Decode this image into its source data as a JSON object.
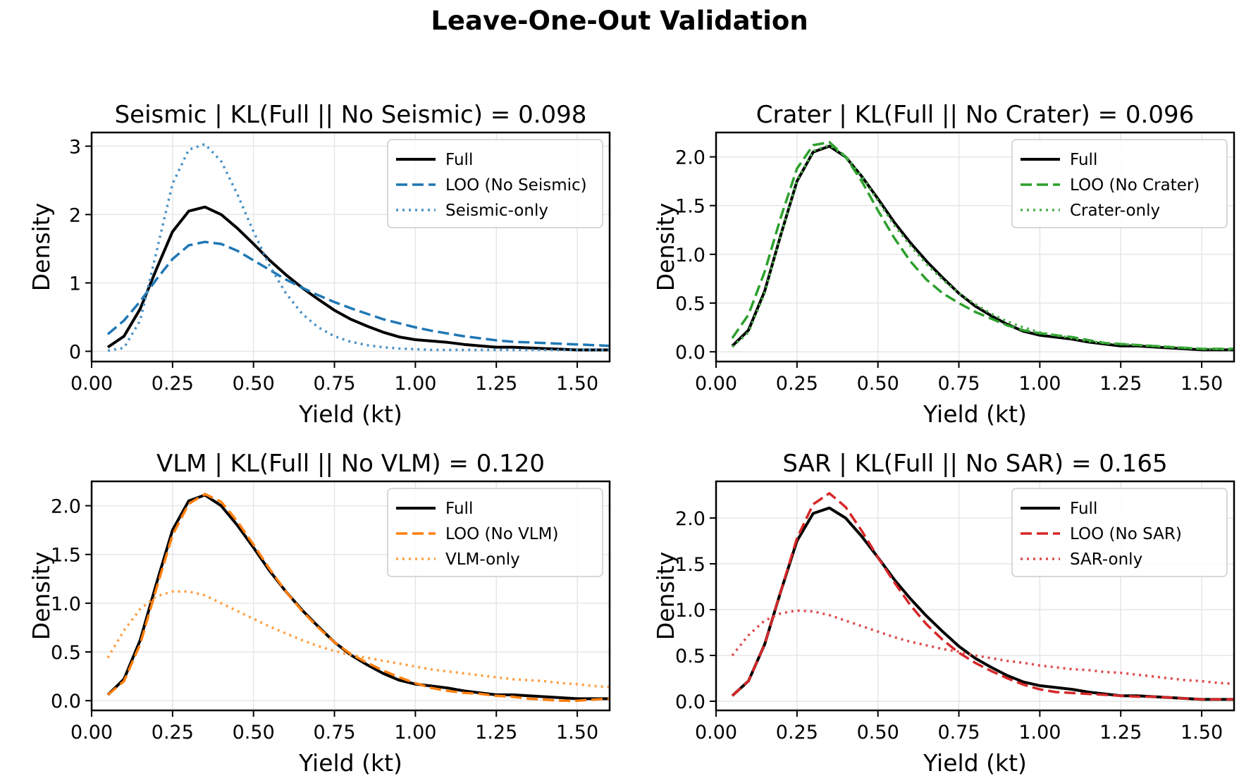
{
  "figure": {
    "title": "Leave-One-Out Validation"
  },
  "chart_data": [
    {
      "type": "line",
      "title": "Seismic | KL(Full || No Seismic) = 0.098",
      "xlabel": "Yield (kt)",
      "ylabel": "Density",
      "xlim": [
        0,
        1.6
      ],
      "ylim": [
        -0.15,
        3.2
      ],
      "xticks": [
        "0.00",
        "0.25",
        "0.50",
        "0.75",
        "1.00",
        "1.25",
        "1.50"
      ],
      "yticks": [
        "0",
        "1",
        "2",
        "3"
      ],
      "legend_position": "upper right",
      "grid": true,
      "series": [
        {
          "name": "Full",
          "color": "#000000",
          "style": "solid",
          "x": [
            0.05,
            0.1,
            0.15,
            0.2,
            0.25,
            0.3,
            0.35,
            0.4,
            0.45,
            0.5,
            0.55,
            0.6,
            0.65,
            0.7,
            0.75,
            0.8,
            0.85,
            0.9,
            0.95,
            1.0,
            1.05,
            1.1,
            1.15,
            1.2,
            1.25,
            1.3,
            1.35,
            1.4,
            1.45,
            1.5,
            1.55,
            1.6
          ],
          "y": [
            0.06,
            0.22,
            0.62,
            1.2,
            1.75,
            2.05,
            2.11,
            2.0,
            1.8,
            1.57,
            1.33,
            1.12,
            0.93,
            0.76,
            0.6,
            0.47,
            0.37,
            0.28,
            0.21,
            0.17,
            0.15,
            0.13,
            0.1,
            0.08,
            0.06,
            0.06,
            0.05,
            0.04,
            0.03,
            0.02,
            0.02,
            0.02
          ]
        },
        {
          "name": "LOO (No Seismic)",
          "color": "#1f77b4",
          "style": "dashed",
          "x": [
            0.05,
            0.1,
            0.15,
            0.2,
            0.25,
            0.3,
            0.35,
            0.4,
            0.45,
            0.5,
            0.55,
            0.6,
            0.65,
            0.7,
            0.75,
            0.8,
            0.85,
            0.9,
            0.95,
            1.0,
            1.05,
            1.1,
            1.15,
            1.2,
            1.25,
            1.3,
            1.35,
            1.4,
            1.45,
            1.5,
            1.55,
            1.6
          ],
          "y": [
            0.25,
            0.45,
            0.73,
            1.05,
            1.35,
            1.55,
            1.6,
            1.57,
            1.47,
            1.33,
            1.19,
            1.05,
            0.93,
            0.82,
            0.72,
            0.63,
            0.55,
            0.47,
            0.41,
            0.35,
            0.3,
            0.26,
            0.22,
            0.19,
            0.16,
            0.14,
            0.13,
            0.12,
            0.11,
            0.1,
            0.09,
            0.08
          ]
        },
        {
          "name": "Seismic-only",
          "color": "#4a92c5",
          "style": "dotted",
          "x": [
            0.05,
            0.1,
            0.15,
            0.2,
            0.25,
            0.3,
            0.35,
            0.4,
            0.45,
            0.5,
            0.55,
            0.6,
            0.65,
            0.7,
            0.75,
            0.8,
            0.85,
            0.9,
            0.95,
            1.0,
            1.05,
            1.1,
            1.15,
            1.2,
            1.25,
            1.3,
            1.35,
            1.4,
            1.45,
            1.5,
            1.55,
            1.6
          ],
          "y": [
            0.01,
            0.05,
            0.45,
            1.45,
            2.45,
            2.95,
            3.03,
            2.78,
            2.3,
            1.75,
            1.25,
            0.85,
            0.55,
            0.35,
            0.22,
            0.14,
            0.09,
            0.06,
            0.04,
            0.03,
            0.02,
            0.02,
            0.02,
            0.02,
            0.02,
            0.02,
            0.02,
            0.02,
            0.02,
            0.02,
            0.02,
            0.02
          ]
        }
      ]
    },
    {
      "type": "line",
      "title": "Crater | KL(Full || No Crater) = 0.096",
      "xlabel": "Yield (kt)",
      "ylabel": "Density",
      "xlim": [
        0,
        1.6
      ],
      "ylim": [
        -0.1,
        2.25
      ],
      "xticks": [
        "0.00",
        "0.25",
        "0.50",
        "0.75",
        "1.00",
        "1.25",
        "1.50"
      ],
      "yticks": [
        "0.0",
        "0.5",
        "1.0",
        "1.5",
        "2.0"
      ],
      "legend_position": "upper right",
      "grid": true,
      "series": [
        {
          "name": "Full",
          "color": "#000000",
          "style": "solid",
          "x": [
            0.05,
            0.1,
            0.15,
            0.2,
            0.25,
            0.3,
            0.35,
            0.4,
            0.45,
            0.5,
            0.55,
            0.6,
            0.65,
            0.7,
            0.75,
            0.8,
            0.85,
            0.9,
            0.95,
            1.0,
            1.05,
            1.1,
            1.15,
            1.2,
            1.25,
            1.3,
            1.35,
            1.4,
            1.45,
            1.5,
            1.55,
            1.6
          ],
          "y": [
            0.06,
            0.22,
            0.62,
            1.2,
            1.75,
            2.05,
            2.11,
            2.0,
            1.8,
            1.57,
            1.33,
            1.12,
            0.93,
            0.76,
            0.6,
            0.47,
            0.37,
            0.28,
            0.21,
            0.17,
            0.15,
            0.13,
            0.1,
            0.08,
            0.06,
            0.06,
            0.05,
            0.04,
            0.03,
            0.02,
            0.02,
            0.02
          ]
        },
        {
          "name": "LOO (No Crater)",
          "color": "#2ca02c",
          "style": "dashed",
          "x": [
            0.05,
            0.1,
            0.15,
            0.2,
            0.25,
            0.3,
            0.35,
            0.4,
            0.45,
            0.5,
            0.55,
            0.6,
            0.65,
            0.7,
            0.75,
            0.8,
            0.85,
            0.9,
            0.95,
            1.0,
            1.05,
            1.1,
            1.15,
            1.2,
            1.25,
            1.3,
            1.35,
            1.4,
            1.45,
            1.5,
            1.55,
            1.6
          ],
          "y": [
            0.14,
            0.38,
            0.82,
            1.38,
            1.88,
            2.12,
            2.15,
            2.0,
            1.75,
            1.45,
            1.17,
            0.93,
            0.74,
            0.6,
            0.5,
            0.41,
            0.34,
            0.27,
            0.22,
            0.19,
            0.17,
            0.15,
            0.12,
            0.09,
            0.08,
            0.07,
            0.06,
            0.05,
            0.04,
            0.03,
            0.03,
            0.03
          ]
        },
        {
          "name": "Crater-only",
          "color": "#4caf4c",
          "style": "dotted",
          "x": [
            0.05,
            0.1,
            0.15,
            0.2,
            0.25,
            0.3,
            0.35,
            0.4,
            0.45,
            0.5,
            0.55,
            0.6,
            0.65,
            0.7,
            0.75,
            0.8,
            0.85,
            0.9,
            0.95,
            1.0,
            1.05,
            1.1,
            1.15,
            1.2,
            1.25,
            1.3,
            1.35,
            1.4,
            1.45,
            1.5,
            1.55,
            1.6
          ],
          "y": [
            0.05,
            0.2,
            0.6,
            1.2,
            1.76,
            2.06,
            2.12,
            2.01,
            1.8,
            1.55,
            1.3,
            1.09,
            0.9,
            0.74,
            0.6,
            0.49,
            0.39,
            0.31,
            0.25,
            0.2,
            0.17,
            0.14,
            0.11,
            0.09,
            0.08,
            0.07,
            0.06,
            0.05,
            0.04,
            0.03,
            0.03,
            0.02
          ]
        }
      ]
    },
    {
      "type": "line",
      "title": "VLM | KL(Full || No VLM) = 0.120",
      "xlabel": "Yield (kt)",
      "ylabel": "Density",
      "xlim": [
        0,
        1.6
      ],
      "ylim": [
        -0.1,
        2.25
      ],
      "xticks": [
        "0.00",
        "0.25",
        "0.50",
        "0.75",
        "1.00",
        "1.25",
        "1.50"
      ],
      "yticks": [
        "0.0",
        "0.5",
        "1.0",
        "1.5",
        "2.0"
      ],
      "legend_position": "upper right",
      "grid": true,
      "series": [
        {
          "name": "Full",
          "color": "#000000",
          "style": "solid",
          "x": [
            0.05,
            0.1,
            0.15,
            0.2,
            0.25,
            0.3,
            0.35,
            0.4,
            0.45,
            0.5,
            0.55,
            0.6,
            0.65,
            0.7,
            0.75,
            0.8,
            0.85,
            0.9,
            0.95,
            1.0,
            1.05,
            1.1,
            1.15,
            1.2,
            1.25,
            1.3,
            1.35,
            1.4,
            1.45,
            1.5,
            1.55,
            1.6
          ],
          "y": [
            0.06,
            0.22,
            0.62,
            1.2,
            1.75,
            2.05,
            2.11,
            2.0,
            1.8,
            1.57,
            1.33,
            1.12,
            0.93,
            0.76,
            0.6,
            0.47,
            0.37,
            0.28,
            0.21,
            0.17,
            0.15,
            0.13,
            0.1,
            0.08,
            0.06,
            0.06,
            0.05,
            0.04,
            0.03,
            0.02,
            0.02,
            0.02
          ]
        },
        {
          "name": "LOO (No VLM)",
          "color": "#ff7f0e",
          "style": "dashed",
          "x": [
            0.05,
            0.1,
            0.15,
            0.2,
            0.25,
            0.3,
            0.35,
            0.4,
            0.45,
            0.5,
            0.55,
            0.6,
            0.65,
            0.7,
            0.75,
            0.8,
            0.85,
            0.9,
            0.95,
            1.0,
            1.05,
            1.1,
            1.15,
            1.2,
            1.25,
            1.3,
            1.35,
            1.4,
            1.45,
            1.5,
            1.55,
            1.6
          ],
          "y": [
            0.06,
            0.2,
            0.58,
            1.15,
            1.7,
            2.02,
            2.12,
            2.04,
            1.84,
            1.6,
            1.35,
            1.12,
            0.92,
            0.75,
            0.6,
            0.48,
            0.39,
            0.31,
            0.24,
            0.18,
            0.13,
            0.1,
            0.08,
            0.07,
            0.05,
            0.04,
            0.02,
            0.01,
            0.0,
            0.0,
            0.01,
            0.02
          ]
        },
        {
          "name": "VLM-only",
          "color": "#ff9e40",
          "style": "dotted",
          "x": [
            0.05,
            0.1,
            0.15,
            0.2,
            0.25,
            0.3,
            0.35,
            0.4,
            0.45,
            0.5,
            0.55,
            0.6,
            0.65,
            0.7,
            0.75,
            0.8,
            0.85,
            0.9,
            0.95,
            1.0,
            1.05,
            1.1,
            1.15,
            1.2,
            1.25,
            1.3,
            1.35,
            1.4,
            1.45,
            1.5,
            1.55,
            1.6
          ],
          "y": [
            0.44,
            0.72,
            0.94,
            1.07,
            1.12,
            1.12,
            1.08,
            1.0,
            0.92,
            0.84,
            0.76,
            0.69,
            0.62,
            0.56,
            0.51,
            0.47,
            0.44,
            0.41,
            0.38,
            0.35,
            0.32,
            0.3,
            0.28,
            0.26,
            0.24,
            0.22,
            0.21,
            0.2,
            0.18,
            0.17,
            0.15,
            0.14
          ]
        }
      ]
    },
    {
      "type": "line",
      "title": "SAR | KL(Full || No SAR) = 0.165",
      "xlabel": "Yield (kt)",
      "ylabel": "Density",
      "xlim": [
        0,
        1.6
      ],
      "ylim": [
        -0.1,
        2.4
      ],
      "xticks": [
        "0.00",
        "0.25",
        "0.50",
        "0.75",
        "1.00",
        "1.25",
        "1.50"
      ],
      "yticks": [
        "0.0",
        "0.5",
        "1.0",
        "1.5",
        "2.0"
      ],
      "legend_position": "upper right",
      "grid": true,
      "series": [
        {
          "name": "Full",
          "color": "#000000",
          "style": "solid",
          "x": [
            0.05,
            0.1,
            0.15,
            0.2,
            0.25,
            0.3,
            0.35,
            0.4,
            0.45,
            0.5,
            0.55,
            0.6,
            0.65,
            0.7,
            0.75,
            0.8,
            0.85,
            0.9,
            0.95,
            1.0,
            1.05,
            1.1,
            1.15,
            1.2,
            1.25,
            1.3,
            1.35,
            1.4,
            1.45,
            1.5,
            1.55,
            1.6
          ],
          "y": [
            0.06,
            0.22,
            0.62,
            1.2,
            1.75,
            2.05,
            2.11,
            2.0,
            1.8,
            1.57,
            1.33,
            1.12,
            0.93,
            0.76,
            0.6,
            0.47,
            0.37,
            0.28,
            0.21,
            0.17,
            0.15,
            0.13,
            0.1,
            0.08,
            0.06,
            0.06,
            0.05,
            0.04,
            0.03,
            0.02,
            0.02,
            0.02
          ]
        },
        {
          "name": "LOO (No SAR)",
          "color": "#d62728",
          "style": "dashed",
          "x": [
            0.05,
            0.1,
            0.15,
            0.2,
            0.25,
            0.3,
            0.35,
            0.4,
            0.45,
            0.5,
            0.55,
            0.6,
            0.65,
            0.7,
            0.75,
            0.8,
            0.85,
            0.9,
            0.95,
            1.0,
            1.05,
            1.1,
            1.15,
            1.2,
            1.25,
            1.3,
            1.35,
            1.4,
            1.45,
            1.5,
            1.55,
            1.6
          ],
          "y": [
            0.06,
            0.22,
            0.62,
            1.2,
            1.78,
            2.15,
            2.27,
            2.12,
            1.86,
            1.57,
            1.3,
            1.05,
            0.84,
            0.67,
            0.53,
            0.42,
            0.33,
            0.25,
            0.18,
            0.13,
            0.1,
            0.09,
            0.08,
            0.07,
            0.06,
            0.05,
            0.05,
            0.04,
            0.03,
            0.02,
            0.02,
            0.02
          ]
        },
        {
          "name": "SAR-only",
          "color": "#e04a4a",
          "style": "dotted",
          "x": [
            0.05,
            0.1,
            0.15,
            0.2,
            0.25,
            0.3,
            0.35,
            0.4,
            0.45,
            0.5,
            0.55,
            0.6,
            0.65,
            0.7,
            0.75,
            0.8,
            0.85,
            0.9,
            0.95,
            1.0,
            1.05,
            1.1,
            1.15,
            1.2,
            1.25,
            1.3,
            1.35,
            1.4,
            1.45,
            1.5,
            1.55,
            1.6
          ],
          "y": [
            0.5,
            0.72,
            0.88,
            0.96,
            0.99,
            0.98,
            0.94,
            0.88,
            0.82,
            0.76,
            0.7,
            0.65,
            0.61,
            0.57,
            0.54,
            0.5,
            0.47,
            0.44,
            0.42,
            0.39,
            0.37,
            0.35,
            0.34,
            0.32,
            0.31,
            0.29,
            0.27,
            0.25,
            0.23,
            0.22,
            0.2,
            0.19
          ]
        }
      ]
    }
  ]
}
